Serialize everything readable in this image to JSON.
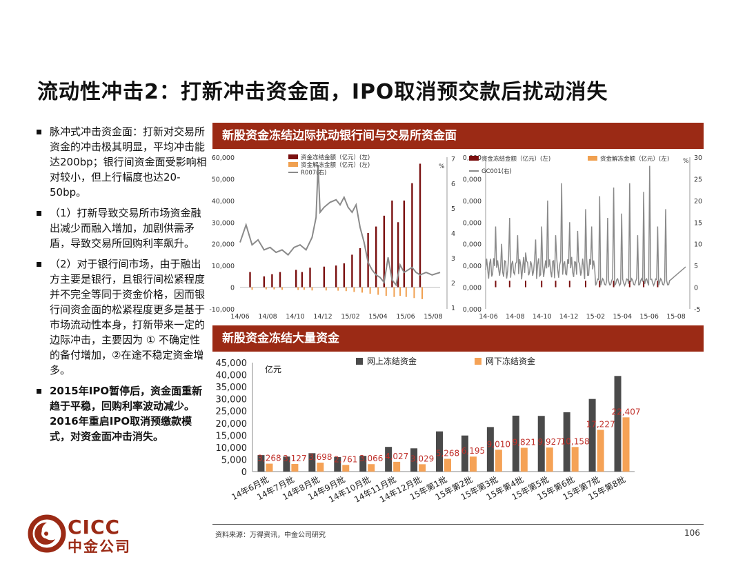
{
  "page": {
    "title": "流动性冲击2：打新冲击资金面，IPO取消预交款后扰动消失",
    "bullets": [
      {
        "text": "脉冲式冲击资金面：打新对交易所资金的冲击极其明显，平均冲击能达200bp；银行间资金面受影响相对较小，但上行幅度也达20-50bp。",
        "bold": false
      },
      {
        "text": "（1）打新导致交易所市场资金融出减少而融入增加，加剧供需矛盾，导致交易所回购利率飙升。",
        "bold": false
      },
      {
        "text": "（2）对于银行间市场，由于融出方主要是银行，且银行间松紧程度并不完全等同于资金价格，因而银行间资金面的松紧程度更多是基于市场流动性本身，打新带来一定的边际冲击，主要因为 ① 不确定性的备付增加，②在途不稳定资金增多。",
        "bold": false
      },
      {
        "text": "2015年IPO暂停后，资金面重新趋于平稳，回购利率波动减少。2016年重启IPO取消预缴款模式，对资金面冲击消失。",
        "bold": true
      }
    ],
    "panel1_title": "新股资金冻结边际扰动银行间与交易所资金面",
    "panel2_title": "新股资金冻结大量资金",
    "source": "资料来源：万得资讯，中金公司研究",
    "page_number": "106",
    "logo_text_en": "CICC",
    "logo_text_cn": "中金公司",
    "colors": {
      "brand": "#9b2a15",
      "dark_series": "#7a1010",
      "orange": "#f0a050",
      "gray_line": "#8a8a8a",
      "bar_dark": "#4a4a4a",
      "bar_orange": "#f5a256",
      "label_red": "#c0302a"
    }
  },
  "chart_data": [
    {
      "type": "bar+line",
      "legend": [
        "资金冻结金额（亿元）(左)",
        "资金解冻金额（亿元）(左)",
        "R007(右)"
      ],
      "y_left_ticks": [
        "60,000",
        "50,000",
        "40,000",
        "30,000",
        "20,000",
        "10,000",
        "0",
        "-10,000"
      ],
      "y_left_lim": [
        -10000,
        60000
      ],
      "y_right_unit": "%",
      "y_right_ticks": [
        "7",
        "6",
        "5",
        "4",
        "3",
        "2",
        "1"
      ],
      "y_right_lim": [
        1,
        7
      ],
      "x_ticks": [
        "14/06",
        "14/08",
        "14/10",
        "14/12",
        "15/02",
        "15/04",
        "15/06",
        "15/08"
      ],
      "freeze_events": [
        {
          "x": 0.05,
          "freeze": 7000,
          "unfreeze": -1200
        },
        {
          "x": 0.12,
          "freeze": 5000,
          "unfreeze": -1000
        },
        {
          "x": 0.16,
          "freeze": 6000,
          "unfreeze": -1000
        },
        {
          "x": 0.2,
          "freeze": 7000,
          "unfreeze": -1200
        },
        {
          "x": 0.28,
          "freeze": 8000,
          "unfreeze": -1300
        },
        {
          "x": 0.31,
          "freeze": 7000,
          "unfreeze": -1200
        },
        {
          "x": 0.35,
          "freeze": 9000,
          "unfreeze": -1500
        },
        {
          "x": 0.42,
          "freeze": 9500,
          "unfreeze": -1500
        },
        {
          "x": 0.48,
          "freeze": 10000,
          "unfreeze": -1600
        },
        {
          "x": 0.52,
          "freeze": 11000,
          "unfreeze": -1800
        },
        {
          "x": 0.56,
          "freeze": 15000,
          "unfreeze": -2200
        },
        {
          "x": 0.6,
          "freeze": 18000,
          "unfreeze": -2500
        },
        {
          "x": 0.64,
          "freeze": 25000,
          "unfreeze": -3000
        },
        {
          "x": 0.68,
          "freeze": 28000,
          "unfreeze": -3500
        },
        {
          "x": 0.72,
          "freeze": 33000,
          "unfreeze": -4000
        },
        {
          "x": 0.76,
          "freeze": 40000,
          "unfreeze": -4500
        },
        {
          "x": 0.79,
          "freeze": 30000,
          "unfreeze": -4000
        },
        {
          "x": 0.82,
          "freeze": 40000,
          "unfreeze": -4500
        },
        {
          "x": 0.86,
          "freeze": 48000,
          "unfreeze": -5000
        },
        {
          "x": 0.9,
          "freeze": 57000,
          "unfreeze": -5500
        }
      ],
      "r007": [
        [
          0.0,
          3.6
        ],
        [
          0.03,
          4.3
        ],
        [
          0.06,
          3.5
        ],
        [
          0.09,
          3.7
        ],
        [
          0.12,
          3.3
        ],
        [
          0.15,
          3.4
        ],
        [
          0.18,
          3.2
        ],
        [
          0.21,
          3.3
        ],
        [
          0.24,
          3.1
        ],
        [
          0.27,
          3.4
        ],
        [
          0.3,
          3.5
        ],
        [
          0.33,
          3.3
        ],
        [
          0.36,
          3.8
        ],
        [
          0.38,
          4.6
        ],
        [
          0.39,
          6.7
        ],
        [
          0.4,
          4.8
        ],
        [
          0.42,
          5.0
        ],
        [
          0.45,
          5.2
        ],
        [
          0.48,
          5.3
        ],
        [
          0.5,
          5.1
        ],
        [
          0.52,
          5.4
        ],
        [
          0.54,
          5.0
        ],
        [
          0.56,
          4.8
        ],
        [
          0.58,
          5.1
        ],
        [
          0.6,
          4.2
        ],
        [
          0.62,
          3.6
        ],
        [
          0.64,
          2.8
        ],
        [
          0.66,
          2.5
        ],
        [
          0.68,
          2.3
        ],
        [
          0.7,
          2.2
        ],
        [
          0.72,
          2.0
        ],
        [
          0.74,
          3.0
        ],
        [
          0.76,
          2.1
        ],
        [
          0.78,
          1.9
        ],
        [
          0.8,
          2.7
        ],
        [
          0.82,
          2.4
        ],
        [
          0.84,
          2.5
        ],
        [
          0.86,
          2.6
        ],
        [
          0.88,
          2.4
        ],
        [
          0.9,
          2.3
        ],
        [
          0.93,
          2.4
        ],
        [
          0.96,
          2.3
        ],
        [
          1.0,
          2.4
        ]
      ]
    },
    {
      "type": "bar+line",
      "legend": [
        "资金冻结金额（亿元）(左)",
        "资金解冻金额（亿元）(左)",
        "GC001(右)"
      ],
      "y_left_ticks": [
        "0,000",
        "0,000",
        "0,000",
        "0,000",
        "0,000",
        "0,000",
        "0,000",
        "0,000"
      ],
      "y_right_unit": "%",
      "y_right_ticks": [
        "30",
        "25",
        "20",
        "15",
        "10",
        "5",
        "0",
        "-5"
      ],
      "y_right_lim": [
        -5,
        30
      ],
      "x_ticks": [
        "14-06",
        "14-08",
        "14-10",
        "14-12",
        "15-02",
        "15-04",
        "15-06",
        "15-08"
      ],
      "gc001_spikes": [
        [
          0.05,
          14
        ],
        [
          0.08,
          10
        ],
        [
          0.12,
          16
        ],
        [
          0.16,
          12
        ],
        [
          0.2,
          8
        ],
        [
          0.25,
          11
        ],
        [
          0.28,
          14
        ],
        [
          0.31,
          20
        ],
        [
          0.35,
          12
        ],
        [
          0.38,
          24
        ],
        [
          0.42,
          15
        ],
        [
          0.46,
          13
        ],
        [
          0.5,
          18
        ],
        [
          0.53,
          14
        ],
        [
          0.57,
          21
        ],
        [
          0.61,
          16
        ],
        [
          0.64,
          23
        ],
        [
          0.68,
          17
        ],
        [
          0.72,
          24
        ],
        [
          0.76,
          12
        ],
        [
          0.79,
          22
        ],
        [
          0.82,
          28
        ],
        [
          0.86,
          14
        ],
        [
          0.9,
          18
        ]
      ],
      "freeze_events_x": [
        0.05,
        0.12,
        0.2,
        0.28,
        0.35,
        0.42,
        0.5,
        0.57,
        0.64,
        0.72,
        0.79,
        0.86
      ]
    },
    {
      "type": "bar",
      "ylabel": "亿元",
      "ylim": [
        0,
        45000
      ],
      "y_ticks": [
        "45,000",
        "40,000",
        "35,000",
        "30,000",
        "25,000",
        "20,000",
        "15,000",
        "10,000",
        "5,000",
        "0"
      ],
      "categories": [
        "14年6月批",
        "14年7月批",
        "14年8月批",
        "14年9月批",
        "14年10月批",
        "14年11月批",
        "14年12月批",
        "15年第1批",
        "15年第2批",
        "15年第3批",
        "15年第4批",
        "15年第5批",
        "15年第6批",
        "15年第7批",
        "15年第8批"
      ],
      "series": [
        {
          "name": "网上冻结资金",
          "values": [
            6800,
            6200,
            7600,
            6000,
            6500,
            10200,
            9600,
            16600,
            14900,
            18400,
            23100,
            23000,
            24500,
            30000,
            39500
          ]
        },
        {
          "name": "网下冻结资金",
          "values": [
            3268,
            3127,
            3698,
            2761,
            3066,
            4027,
            3029,
            5268,
            6195,
            9010,
            9821,
            9927,
            10158,
            17227,
            22407
          ]
        }
      ],
      "data_labels": [
        "3,268",
        "3,127",
        "3,698",
        "2,761",
        "3,066",
        "4,027",
        "3,029",
        "5,268",
        "6,195",
        "9,010",
        "9,821",
        "9,927",
        "10,158",
        "17,227",
        "22,407"
      ]
    }
  ]
}
